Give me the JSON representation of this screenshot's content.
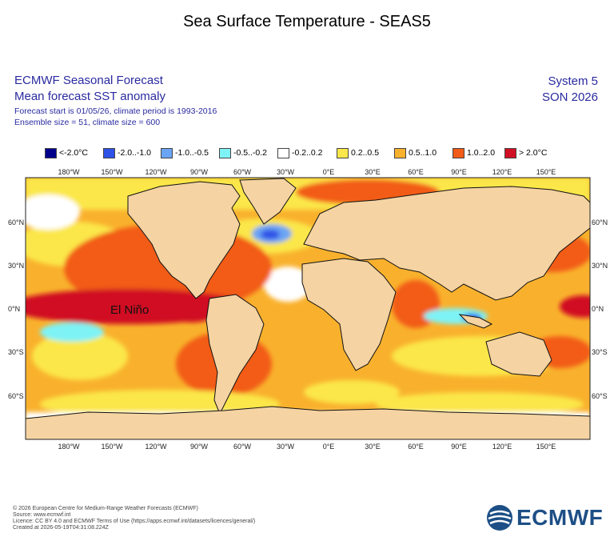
{
  "title": "Sea Surface Temperature - SEAS5",
  "header": {
    "line1": "ECMWF Seasonal Forecast",
    "line2": "Mean forecast SST anomaly",
    "line3": "Forecast start is 01/05/26, climate period is 1993-2016",
    "line4": "Ensemble size = 51, climate size = 600",
    "system": "System 5",
    "season": "SON 2026"
  },
  "legend": [
    {
      "label": "<-2.0°C",
      "color": "#00008b"
    },
    {
      "label": "-2.0..-1.0",
      "color": "#2e51e6"
    },
    {
      "label": "-1.0..-0.5",
      "color": "#6aa5f5"
    },
    {
      "label": "-0.5..-0.2",
      "color": "#7ef3f6"
    },
    {
      "label": "-0.2..0.2",
      "color": "#ffffff"
    },
    {
      "label": "0.2..0.5",
      "color": "#fbe74a"
    },
    {
      "label": "0.5..1.0",
      "color": "#f9b12d"
    },
    {
      "label": "1.0..2.0",
      "color": "#f25b17"
    },
    {
      "label": "> 2.0°C",
      "color": "#d01024"
    }
  ],
  "map": {
    "lon_labels": [
      "180°W",
      "150°W",
      "120°W",
      "90°W",
      "60°W",
      "30°W",
      "0°E",
      "30°E",
      "60°E",
      "90°E",
      "120°E",
      "150°E"
    ],
    "lat_labels": [
      "60°N",
      "30°N",
      "0°N",
      "30°S",
      "60°S"
    ],
    "annotation": "El Niño",
    "land_color": "#f5d3a2"
  },
  "footer": {
    "line1": "© 2026 European Centre for Medium-Range Weather Forecasts (ECMWF)",
    "line2": "Source: www.ecmwf.int",
    "line3": "Licence: CC BY 4.0 and ECMWF Terms of Use (https://apps.ecmwf.int/datasets/licences/general/)",
    "line4": "Created at 2026-05-19T04:31:08.224Z"
  },
  "logo": {
    "text": "ECMWF"
  }
}
